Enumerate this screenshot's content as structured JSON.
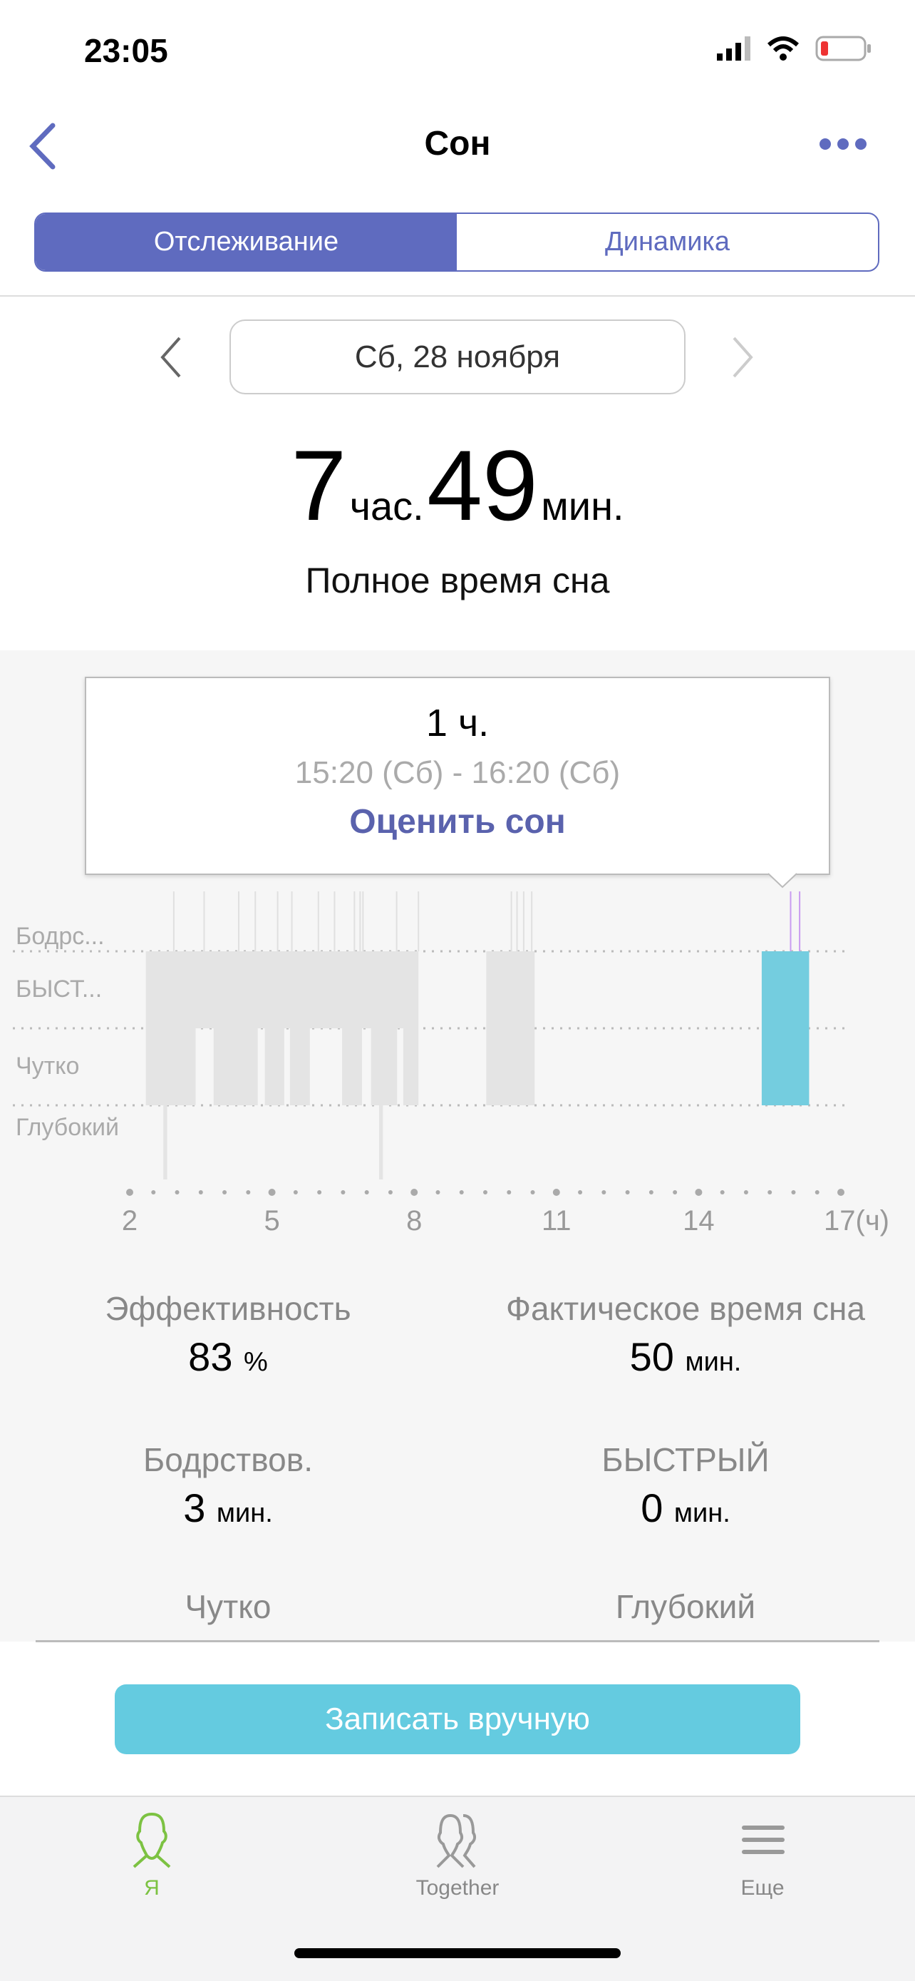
{
  "status": {
    "time": "23:05"
  },
  "nav": {
    "title": "Сон"
  },
  "tabs": [
    {
      "label": "Отслеживание",
      "active": true
    },
    {
      "label": "Динамика",
      "active": false
    }
  ],
  "date": {
    "label": "Сб, 28 ноября"
  },
  "total": {
    "hours": "7",
    "hours_unit": "час.",
    "minutes": "49",
    "minutes_unit": "мин.",
    "caption": "Полное время сна"
  },
  "tooltip": {
    "duration": "1 ч.",
    "range": "15:20 (Сб) - 16:20 (Сб)",
    "action": "Оценить сон"
  },
  "chart_data": {
    "type": "hypnogram",
    "stages": [
      "Бодрс...",
      "БЫСТ...",
      "Чутко",
      "Глубокий"
    ],
    "x_ticks": [
      "2",
      "5",
      "8",
      "11",
      "14",
      "17(ч)"
    ],
    "xlim": [
      2,
      17
    ],
    "colors": {
      "past": "#e4e4e4",
      "selected": "#74cddf",
      "awake_selected": "#c99cf0",
      "awake": "#e0e0e0"
    },
    "rem": [
      [
        2.34,
        8.09
      ],
      [
        9.52,
        10.54
      ]
    ],
    "light": [
      [
        2.34,
        3.39
      ],
      [
        3.77,
        4.7
      ],
      [
        4.85,
        5.26
      ],
      [
        5.38,
        5.8
      ],
      [
        6.48,
        6.9
      ],
      [
        7.09,
        7.64
      ],
      [
        7.77,
        8.09
      ],
      [
        9.52,
        10.54
      ]
    ],
    "deep": [
      [
        2.71,
        2.79
      ],
      [
        7.26,
        7.34
      ]
    ],
    "awake": [
      2.93,
      3.57,
      4.3,
      4.65,
      5.12,
      5.42,
      5.98,
      6.32,
      6.74,
      6.86,
      6.92,
      7.63,
      8.09,
      10.05,
      10.17,
      10.31,
      10.48
    ],
    "selected": {
      "range": [
        15.33,
        16.33
      ],
      "awake": [
        15.94,
        16.13
      ]
    }
  },
  "stats": [
    {
      "label": "Эффективность",
      "value": "83",
      "unit": "%"
    },
    {
      "label": "Фактическое время сна",
      "value": "50",
      "unit": "мин."
    },
    {
      "label": "Бодрствов.",
      "value": "3",
      "unit": "мин."
    },
    {
      "label": "БЫСТРЫЙ",
      "value": "0",
      "unit": "мин."
    },
    {
      "label": "Чутко",
      "value": "",
      "unit": ""
    },
    {
      "label": "Глубокий",
      "value": "",
      "unit": ""
    }
  ],
  "manual_button": "Записать вручную",
  "tabbar": [
    {
      "label": "Я",
      "color": "#7cc242"
    },
    {
      "label": "Together"
    },
    {
      "label": "Еще"
    }
  ]
}
